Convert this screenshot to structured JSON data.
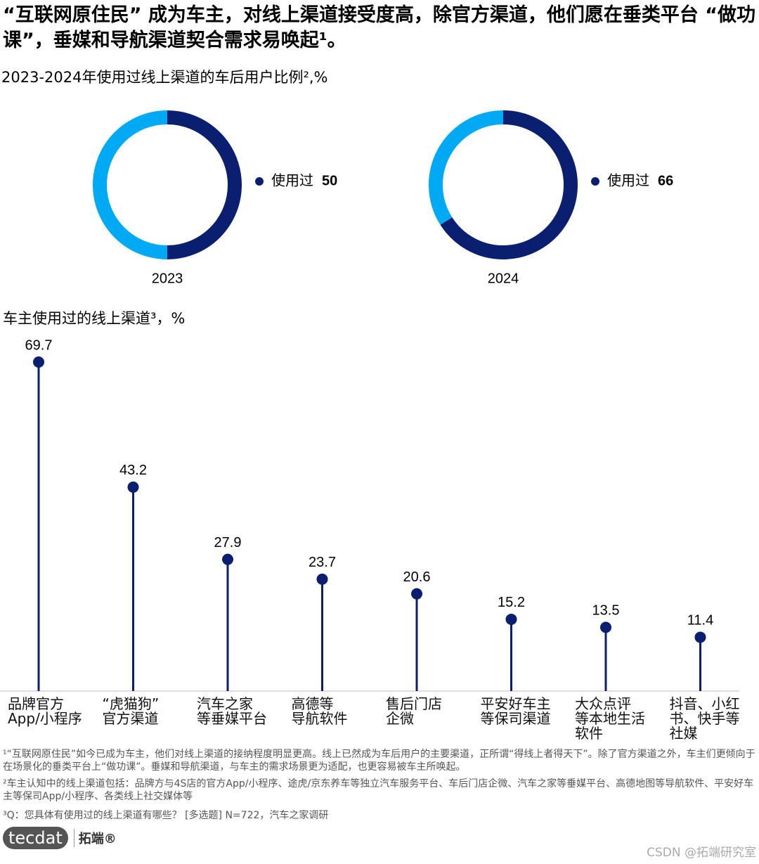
{
  "title": "“互联网原住民” 成为车主，对线上渠道接受度高，除官方渠道，他们愿在垂类平台 “做功课”，垂媒和导航渠道契合需求易唤起¹。",
  "subtitle": "2023-2024年使用过线上渠道的车后用户比例²,%",
  "chart_data": [
    {
      "type": "donut",
      "title": "2023",
      "categories": [
        "使用过",
        null
      ],
      "values": [
        50,
        50
      ],
      "colors": [
        "#0b1f70",
        "#00a9f4"
      ]
    },
    {
      "type": "donut",
      "title": "2024",
      "categories": [
        "使用过",
        null
      ],
      "values": [
        66,
        34
      ],
      "colors": [
        "#0b1f70",
        "#00a9f4"
      ]
    },
    {
      "type": "lollipop",
      "title": "车主使用过的线上渠道³，%",
      "categories": [
        "品牌官方\nApp/小程序",
        "“虎猫狗”\n官方渠道",
        "汽车之家\n等垂媒平台",
        "高德等\n导航软件",
        "售后门店\n企微",
        "平安好车主\n等保司渠道",
        "大众点评\n等本地生活\n软件",
        "抖音、小红\n书、快手等\n社媒"
      ],
      "values": [
        69.7,
        43.2,
        27.9,
        23.7,
        20.6,
        15.2,
        13.5,
        11.4
      ],
      "color": "#0b1f70"
    }
  ],
  "footnotes": [
    "¹“互联网原住民”如今已成为车主，他们对线上渠道的接纳程度明显更高。线上已然成为车后用户的主要渠道，正所谓“得线上者得天下”。除了官方渠道之外，车主们更倾向于在场景化的垂类平台上“做功课”。垂媒和导航渠道，与车主的需求场景更为适配，也更容易被车主所唤起。",
    "²车主认知中的线上渠道包括：品牌方与4S店的官方App/小程序、途虎/京东养车等独立汽车服务平台、车后门店企微、汽车之家等垂媒平台、高德地图等导航软件、平安好车主等保司App/小程序、各类线上社交媒体等",
    "³Q：您具体有使用过的线上渠道有哪些？ [多选题] N=722，汽车之家调研"
  ],
  "logo": {
    "mark": "tecdat",
    "name": "拓端®"
  },
  "watermark": "CSDN @拓端研究室"
}
